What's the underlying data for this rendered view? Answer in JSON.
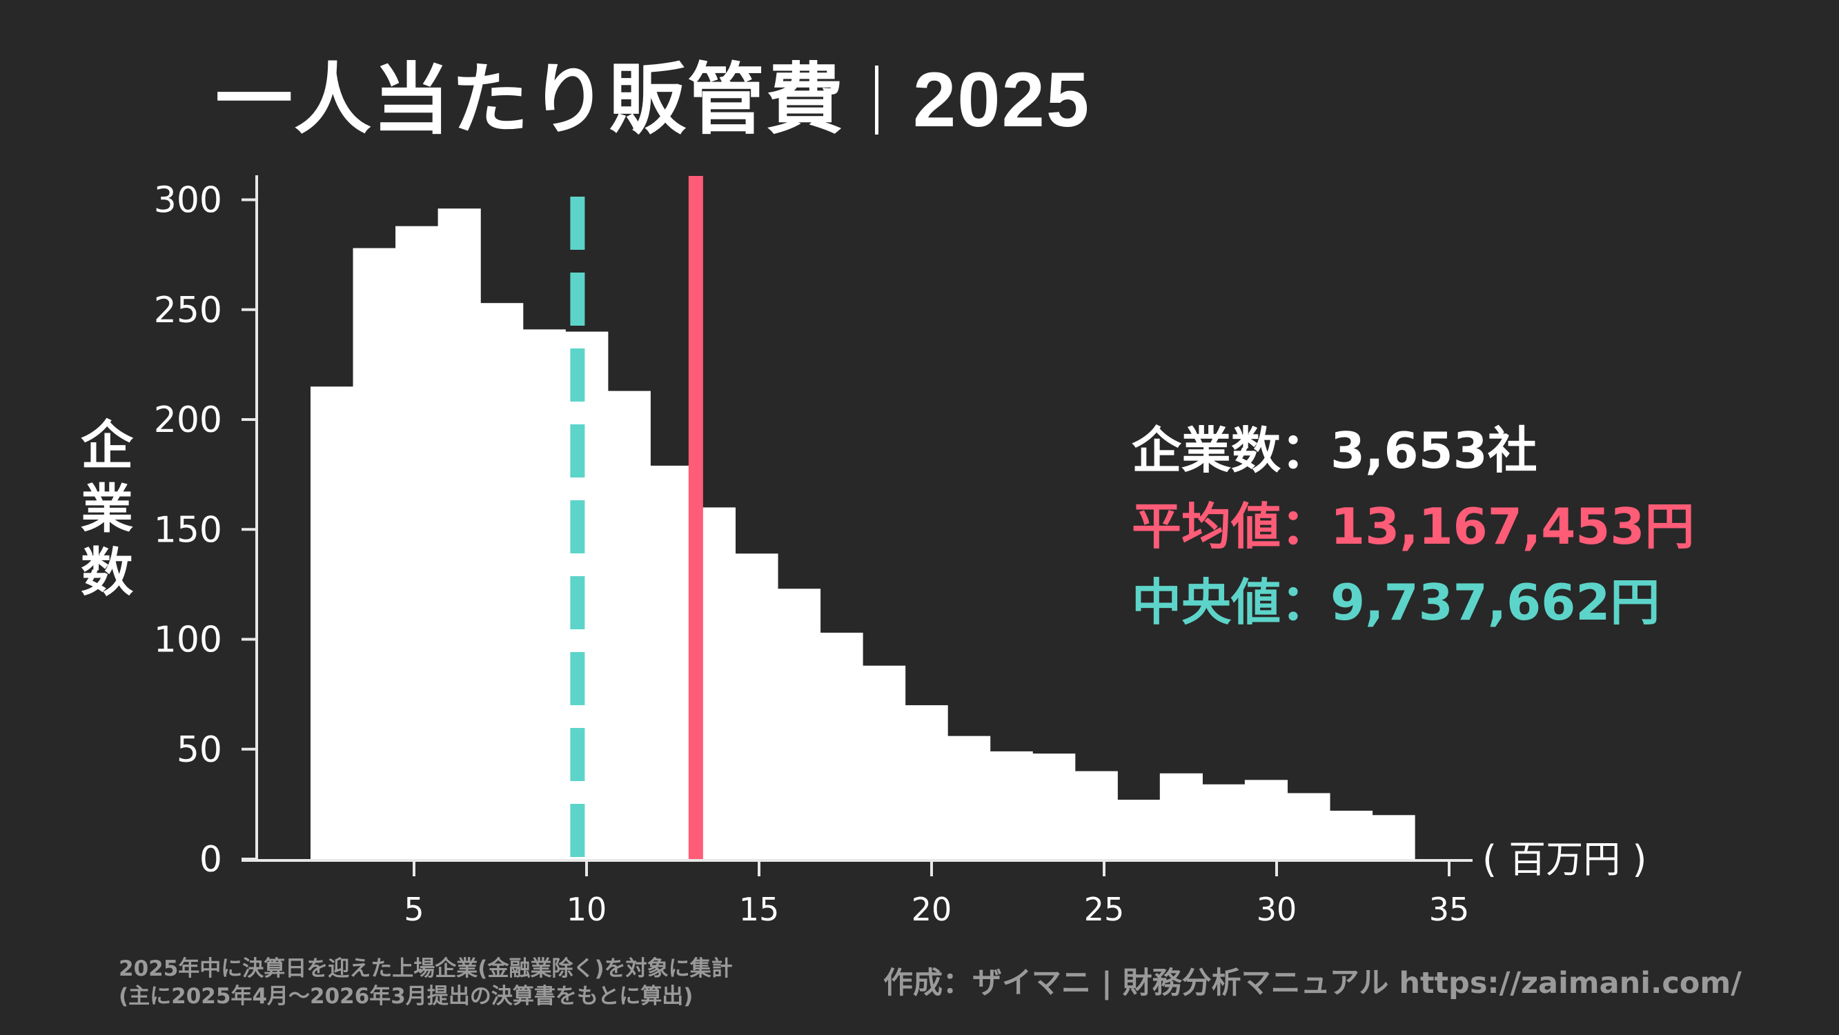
{
  "title": {
    "main": "一人当たり販管費",
    "year": "2025"
  },
  "stats": {
    "count_label": "企業数：",
    "count_value": "3,653社",
    "mean_label": "平均値：",
    "mean_value": "13,167,453円",
    "median_label": "中央値：",
    "median_value": "9,737,662円"
  },
  "axes": {
    "ylabel_chars": [
      "企",
      "業",
      "数"
    ],
    "xunit": "( 百万円 )"
  },
  "footer": {
    "note_line1": "2025年中に決算日を迎えた上場企業(金融業除く)を対象に集計",
    "note_line2": "(主に2025年4月～2026年3月提出の決算書をもとに算出)",
    "credit": "作成：ザイマニ | 財務分析マニュアル https://zaimani.com/"
  },
  "colors": {
    "background": "#282828",
    "bars": "#ffffff",
    "mean": "#ff5c77",
    "median": "#5dd4c9",
    "footer_text": "#9a9a9a"
  },
  "chart_data": {
    "type": "bar",
    "subtype": "histogram",
    "title": "一人当たり販管費｜2025",
    "xlabel": "百万円",
    "ylabel": "企業数",
    "xlim": [
      0,
      35.5
    ],
    "ylim": [
      0,
      310
    ],
    "xticks": [
      5,
      10,
      15,
      20,
      25,
      30,
      35
    ],
    "yticks": [
      0,
      50,
      100,
      150,
      200,
      250,
      300
    ],
    "grid": false,
    "bin_start": 2.0,
    "bin_width": 1.2308,
    "bin_edges": [
      2.0,
      3.23,
      4.46,
      5.69,
      6.92,
      8.15,
      9.38,
      10.62,
      11.85,
      13.08,
      14.31,
      15.54,
      16.77,
      18.0,
      19.23,
      20.46,
      21.69,
      22.92,
      24.15,
      25.38,
      26.62,
      27.85,
      29.08,
      30.31,
      31.54,
      32.77,
      34.0
    ],
    "values": [
      215,
      278,
      288,
      296,
      253,
      241,
      240,
      213,
      179,
      160,
      139,
      123,
      103,
      88,
      70,
      56,
      49,
      48,
      40,
      27,
      39,
      34,
      36,
      30,
      22,
      20
    ],
    "reference_lines": [
      {
        "name": "平均値",
        "x": 13.167,
        "color": "#ff5c77",
        "style": "solid"
      },
      {
        "name": "中央値",
        "x": 9.738,
        "color": "#5dd4c9",
        "style": "dashed"
      }
    ],
    "annotations": [
      "企業数：3,653社",
      "平均値：13,167,453円",
      "中央値：9,737,662円"
    ]
  }
}
